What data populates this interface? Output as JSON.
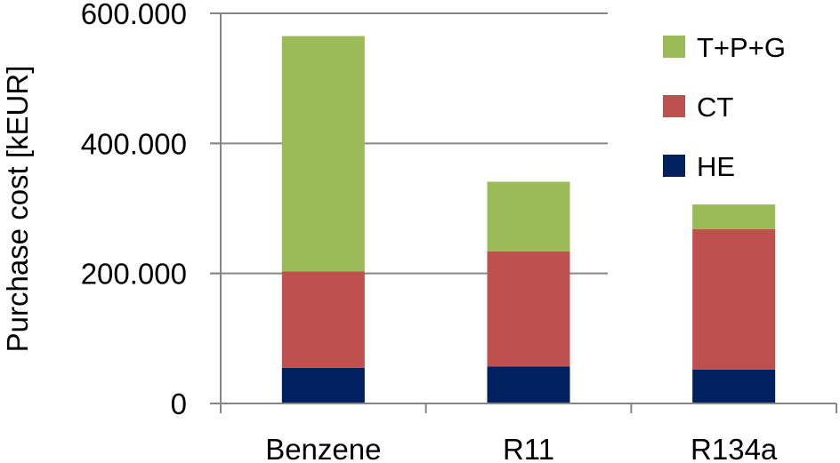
{
  "chart_data": {
    "type": "bar",
    "stacked": true,
    "categories": [
      "Benzene",
      "R11",
      "R134a"
    ],
    "series": [
      {
        "name": "HE",
        "color": "#002060",
        "values": [
          55000,
          57000,
          52000
        ]
      },
      {
        "name": "CT",
        "color": "#C0504D",
        "values": [
          148000,
          177000,
          216000
        ]
      },
      {
        "name": "T+P+G",
        "color": "#9BBB59",
        "values": [
          362000,
          107000,
          38000
        ]
      }
    ],
    "ylabel": "Purchase cost [kEUR]",
    "ylim": [
      0,
      600000
    ],
    "yticks": [
      0,
      200000,
      400000,
      600000
    ],
    "ytick_labels": [
      "0",
      "200.000",
      "400.000",
      "600.000"
    ],
    "grid": true,
    "legend": {
      "position": "top-right",
      "order": [
        "T+P+G",
        "CT",
        "HE"
      ]
    }
  }
}
